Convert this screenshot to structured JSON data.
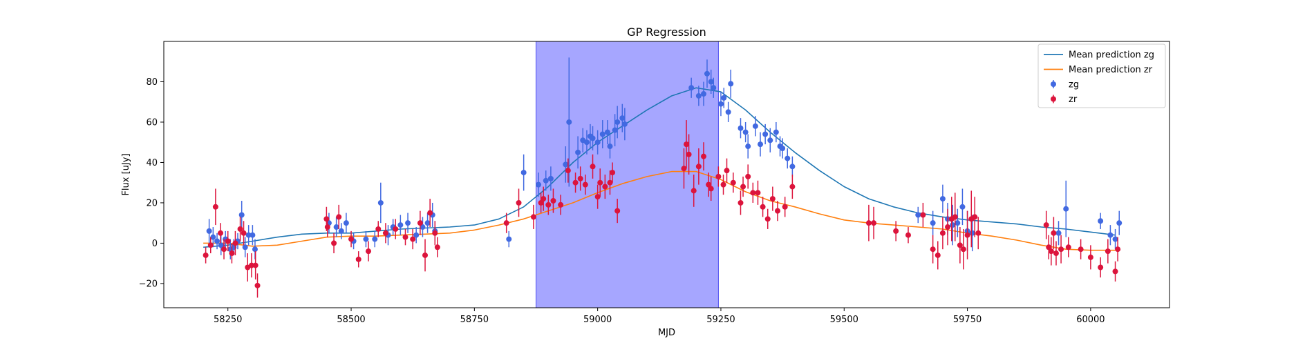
{
  "chart_data": {
    "type": "scatter",
    "title": "GP Regression",
    "xlabel": "MJD",
    "ylabel": "Flux [uJy]",
    "xlim": [
      58120,
      60160
    ],
    "ylim": [
      -32,
      100
    ],
    "xticks": [
      58250,
      58500,
      58750,
      59000,
      59250,
      59500,
      59750,
      60000
    ],
    "yticks": [
      -20,
      0,
      20,
      40,
      60,
      80
    ],
    "grid": false,
    "legend_position": "top-right",
    "shaded_region": {
      "x_start": 58875,
      "x_end": 59245,
      "color": "#a6a6ff"
    },
    "series": [
      {
        "name": "Mean prediction zg",
        "kind": "line",
        "color": "#1f77b4",
        "x": [
          58200,
          58250,
          58300,
          58350,
          58400,
          58450,
          58500,
          58550,
          58600,
          58650,
          58700,
          58750,
          58800,
          58850,
          58900,
          58950,
          59000,
          59050,
          59100,
          59150,
          59200,
          59250,
          59300,
          59350,
          59400,
          59450,
          59500,
          59550,
          59600,
          59650,
          59700,
          59750,
          59800,
          59850,
          59900,
          59950,
          60000,
          60050
        ],
        "y": [
          -2,
          -1,
          1,
          3,
          4.5,
          5,
          5,
          6,
          7,
          7.5,
          8,
          9,
          12,
          18,
          28,
          40,
          50,
          58,
          66,
          73,
          77,
          75,
          66,
          55,
          45,
          36,
          28,
          22,
          18,
          15,
          13,
          11.5,
          10.5,
          9.5,
          8,
          7,
          5.5,
          4
        ]
      },
      {
        "name": "Mean prediction zr",
        "kind": "line",
        "color": "#ff7f0e",
        "x": [
          58200,
          58250,
          58300,
          58350,
          58400,
          58450,
          58500,
          58550,
          58600,
          58650,
          58700,
          58750,
          58800,
          58850,
          58900,
          58950,
          59000,
          59050,
          59100,
          59150,
          59200,
          59250,
          59300,
          59350,
          59400,
          59450,
          59500,
          59550,
          59600,
          59650,
          59700,
          59750,
          59800,
          59850,
          59900,
          59950,
          60000,
          60050
        ],
        "y": [
          0,
          0,
          -1.5,
          -1,
          1,
          3,
          3.5,
          3.5,
          4,
          4.5,
          5,
          6.5,
          9,
          12,
          16,
          20,
          25,
          29.5,
          33,
          35.5,
          35.5,
          31.5,
          25.5,
          21,
          18,
          14.5,
          11.5,
          10,
          9,
          8,
          7,
          5,
          3.5,
          1.5,
          -1,
          -3,
          -3.5,
          -3.5
        ]
      },
      {
        "name": "zg",
        "kind": "errorbar",
        "color": "#4169e1",
        "x": [
          58212,
          58220,
          58228,
          58236,
          58245,
          58255,
          58262,
          58270,
          58278,
          58285,
          58292,
          58300,
          58305,
          58455,
          58470,
          58480,
          58490,
          58505,
          58530,
          58548,
          58560,
          58575,
          58585,
          58600,
          58615,
          58632,
          58645,
          58655,
          58665,
          58670,
          58820,
          58850,
          58880,
          58895,
          58905,
          58935,
          58942,
          58960,
          58970,
          58978,
          58985,
          58990,
          59000,
          59010,
          59020,
          59025,
          59035,
          59040,
          59050,
          59055,
          59190,
          59205,
          59215,
          59222,
          59230,
          59235,
          59250,
          59256,
          59265,
          59270,
          59290,
          59300,
          59305,
          59320,
          59330,
          59340,
          59350,
          59362,
          59370,
          59375,
          59385,
          59395,
          59650,
          59680,
          59700,
          59710,
          59720,
          59730,
          59740,
          59750,
          59760,
          59935,
          59950,
          60020,
          60040,
          60050,
          60058
        ],
        "y": [
          6,
          3,
          1,
          -1,
          2,
          -3,
          -2,
          1,
          14,
          -2,
          4,
          4,
          -3,
          10,
          8,
          6,
          10,
          1,
          2,
          2,
          20,
          4,
          8,
          9,
          10,
          4,
          8,
          10,
          14,
          6,
          2,
          35,
          29,
          31,
          32,
          39,
          60,
          45,
          51,
          50,
          53,
          52,
          50,
          54,
          55,
          48,
          56,
          60,
          62,
          59,
          77,
          73,
          74,
          84,
          80,
          77,
          69,
          72,
          65,
          79,
          57,
          55,
          48,
          58,
          49,
          54,
          51,
          55,
          48,
          47,
          42,
          38,
          14,
          10,
          22,
          12,
          9,
          10,
          18,
          6,
          5,
          5,
          17,
          11,
          4,
          2,
          10
        ],
        "yerr": [
          6,
          5,
          4,
          5,
          4,
          5,
          4,
          4,
          7,
          5,
          5,
          5,
          5,
          5,
          5,
          4,
          5,
          4,
          4,
          4,
          10,
          5,
          4,
          5,
          5,
          4,
          5,
          5,
          6,
          5,
          4,
          9,
          6,
          5,
          6,
          9,
          32,
          8,
          6,
          6,
          6,
          6,
          6,
          7,
          6,
          6,
          8,
          8,
          7,
          8,
          5,
          5,
          6,
          7,
          6,
          5,
          6,
          5,
          5,
          7,
          5,
          5,
          6,
          5,
          6,
          5,
          6,
          5,
          5,
          5,
          5,
          5,
          4,
          6,
          7,
          8,
          10,
          7,
          9,
          10,
          9,
          6,
          14,
          4,
          5,
          5,
          6
        ]
      },
      {
        "name": "zr",
        "kind": "errorbar",
        "color": "#dc143c",
        "x": [
          58205,
          58215,
          58225,
          58235,
          58242,
          58250,
          58258,
          58265,
          58275,
          58282,
          58290,
          58298,
          58306,
          58310,
          58450,
          58452,
          58465,
          58475,
          58500,
          58515,
          58535,
          58555,
          58570,
          58590,
          58610,
          58625,
          58640,
          58650,
          58660,
          58670,
          58675,
          58815,
          58840,
          58870,
          58885,
          58890,
          58900,
          58910,
          58925,
          58940,
          58955,
          58965,
          58975,
          58990,
          59000,
          59005,
          59015,
          59025,
          59030,
          59040,
          59175,
          59180,
          59185,
          59195,
          59205,
          59215,
          59225,
          59230,
          59245,
          59255,
          59262,
          59275,
          59290,
          59295,
          59305,
          59315,
          59325,
          59335,
          59345,
          59355,
          59365,
          59380,
          59395,
          59550,
          59560,
          59605,
          59630,
          59660,
          59680,
          59690,
          59700,
          59710,
          59718,
          59725,
          59735,
          59742,
          59750,
          59758,
          59765,
          59772,
          59910,
          59915,
          59920,
          59925,
          59930,
          59940,
          59955,
          59980,
          60000,
          60020,
          60035,
          60050,
          60055
        ],
        "y": [
          -6,
          -1,
          18,
          5,
          -3,
          1,
          -5,
          0,
          7,
          5,
          -12,
          -11,
          -11,
          -21,
          12,
          8,
          0,
          13,
          2,
          -8,
          -4,
          7,
          5,
          7,
          3,
          2,
          10,
          -6,
          15,
          5,
          -2,
          10,
          20,
          13,
          20,
          22,
          19,
          21,
          19,
          36,
          30,
          32,
          29,
          38,
          23,
          30,
          28,
          30,
          35,
          16,
          37,
          49,
          44,
          26,
          38,
          43,
          29,
          27,
          33,
          29,
          36,
          30,
          20,
          28,
          33,
          25,
          25,
          18,
          12,
          22,
          16,
          18,
          28,
          10,
          10,
          6,
          4,
          14,
          -3,
          -6,
          5,
          8,
          12,
          13,
          -1,
          -3,
          4,
          12,
          13,
          5,
          9,
          -2,
          -4,
          5,
          -5,
          -3,
          -2,
          -3,
          -7,
          -12,
          -4,
          -14,
          -3
        ],
        "yerr": [
          4,
          4,
          9,
          5,
          5,
          5,
          5,
          6,
          6,
          6,
          7,
          6,
          7,
          6,
          6,
          5,
          5,
          6,
          4,
          4,
          5,
          4,
          5,
          5,
          4,
          5,
          6,
          8,
          7,
          6,
          5,
          5,
          7,
          6,
          5,
          6,
          5,
          6,
          5,
          6,
          5,
          6,
          5,
          6,
          6,
          7,
          6,
          6,
          5,
          6,
          10,
          12,
          10,
          8,
          9,
          7,
          6,
          6,
          5,
          5,
          6,
          5,
          6,
          5,
          6,
          5,
          6,
          5,
          5,
          6,
          5,
          5,
          6,
          9,
          8,
          5,
          4,
          6,
          7,
          7,
          8,
          9,
          11,
          12,
          9,
          10,
          12,
          14,
          10,
          8,
          7,
          6,
          7,
          8,
          6,
          7,
          5,
          5,
          6,
          5,
          6,
          5,
          6
        ]
      }
    ]
  }
}
